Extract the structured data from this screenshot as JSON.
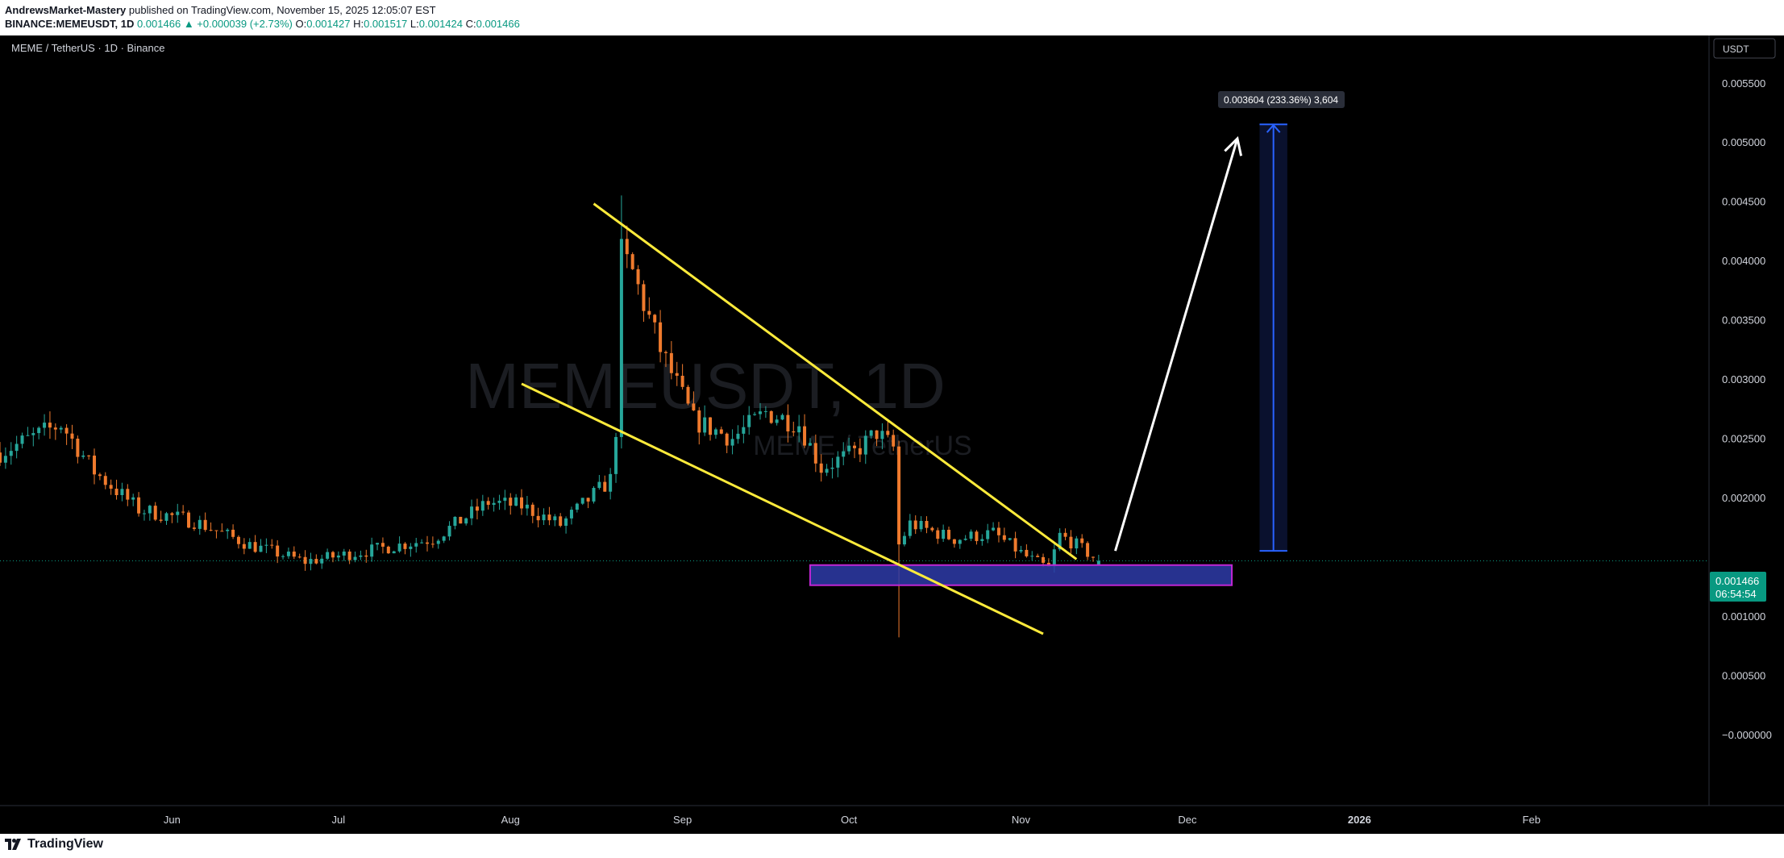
{
  "header": {
    "author": "AndrewsMarket-Mastery",
    "published_text": " published on TradingView.com, November 15, 2025 12:05:07 EST",
    "symbol_full": "BINANCE:MEMEUSDT, 1D",
    "last": "0.001466",
    "change": "▲ +0.000039 (+2.73%)",
    "o_label": "O:",
    "o": "0.001427",
    "h_label": "H:",
    "h": "0.001517",
    "l_label": "L:",
    "l": "0.001424",
    "c_label": "C:",
    "c": "0.001466"
  },
  "chart": {
    "legend_title": "MEME / TetherUS · 1D · Binance",
    "watermark_main": "MEMEUSDT, 1D",
    "watermark_sub": "MEME / TetherUS",
    "currency_button": "USDT",
    "current_price_label": "0.001466",
    "countdown": "06:54:54",
    "measure_label": "0.003604 (233.36%) 3,604",
    "colors": {
      "background": "#000000",
      "up": "#26a69a",
      "down": "#ef7a2d",
      "wedge": "#ffeb3b",
      "zone_fill": "#2e3ba8",
      "zone_border": "#c026d3",
      "projection": "#2962ff",
      "arrow": "#ffffff",
      "price_badge": "#089981"
    }
  },
  "footer": {
    "brand": "TradingView"
  },
  "chart_data": {
    "type": "candlestick",
    "y_axis": {
      "ticks": [
        0.0055,
        0.005,
        0.0045,
        0.004,
        0.0035,
        0.003,
        0.0025,
        0.002,
        0.001,
        0.0005,
        0
      ],
      "tick_labels": [
        "0.005500",
        "0.005000",
        "0.004500",
        "0.004000",
        "0.003500",
        "0.003000",
        "0.002500",
        "0.002000",
        "0.001000",
        "0.000500",
        "−0.000000"
      ],
      "range": [
        -0.0006,
        0.0059
      ]
    },
    "x_axis": {
      "tick_labels": [
        "Jun",
        "Jul",
        "Aug",
        "Sep",
        "Oct",
        "Nov",
        "Dec",
        "2026",
        "Feb"
      ],
      "start_date": "2025-05-01",
      "end_date": "2026-03-05"
    },
    "key_points": [
      {
        "date": "2025-08-21",
        "high": 0.00455,
        "note": "peak wick"
      },
      {
        "date": "2025-10-10",
        "low": 0.00082,
        "note": "flash crash wick"
      },
      {
        "date": "2025-11-15",
        "close": 0.001466
      }
    ],
    "falling_wedge": {
      "upper_line": [
        {
          "date": "2025-08-16",
          "price": 0.00448
        },
        {
          "date": "2025-11-11",
          "price": 0.00148
        }
      ],
      "lower_line": [
        {
          "date": "2025-08-03",
          "price": 0.00296
        },
        {
          "date": "2025-11-05",
          "price": 0.00085
        }
      ]
    },
    "support_zone": {
      "from": "2025-09-24",
      "to": "2025-12-09",
      "top": 0.00143,
      "bottom": 0.00126
    },
    "projection": {
      "from": "2025-12-14",
      "to": "2025-12-19",
      "base": 0.00155,
      "target": 0.00515
    },
    "arrow": {
      "from_date": "2025-11-18",
      "from_price": 0.00155,
      "to_date": "2025-12-10",
      "to_price": 0.00503
    },
    "current_price": 0.001466
  }
}
